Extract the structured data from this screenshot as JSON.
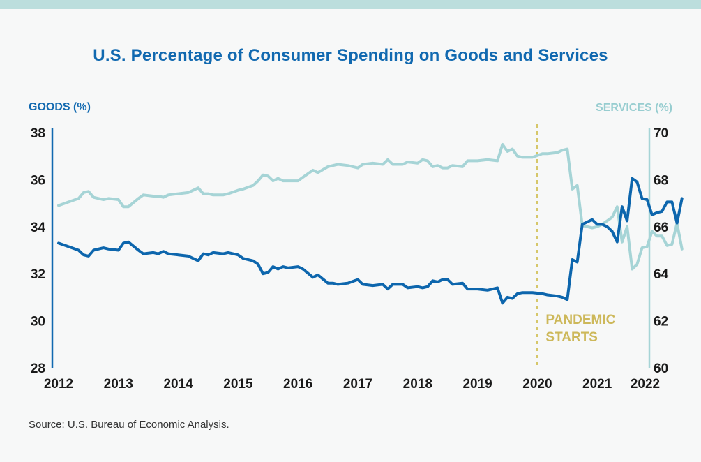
{
  "chart_data": {
    "type": "line",
    "title": "U.S. Percentage of Consumer Spending on Goods and Services",
    "ylabel_left": "GOODS (%)",
    "ylabel_right": "SERVICES (%)",
    "ylim_left": [
      28,
      38
    ],
    "ylim_right": [
      60,
      70
    ],
    "y_ticks_left": [
      "28",
      "30",
      "32",
      "34",
      "36",
      "38"
    ],
    "y_ticks_right": [
      "60",
      "62",
      "64",
      "66",
      "68",
      "70"
    ],
    "x_ticks": [
      "2012",
      "2013",
      "2014",
      "2015",
      "2016",
      "2017",
      "2018",
      "2019",
      "2020",
      "2021",
      "2022"
    ],
    "xlim": [
      "2012-01",
      "2022-01"
    ],
    "grid": false,
    "colors": {
      "goods": "#0d66ad",
      "services": "#a6d4d6",
      "annotation": "#d6c76a"
    },
    "annotation": {
      "x": "2020-01",
      "label_line1": "PANDEMIC",
      "label_line2": "STARTS"
    },
    "series": [
      {
        "name": "GOODS (%)",
        "axis": "left",
        "points": [
          [
            "2012-01",
            33.3
          ],
          [
            "2012-03",
            33.15
          ],
          [
            "2012-05",
            33.0
          ],
          [
            "2012-06",
            32.8
          ],
          [
            "2012-07",
            32.75
          ],
          [
            "2012-08",
            33.0
          ],
          [
            "2012-10",
            33.1
          ],
          [
            "2012-11",
            33.05
          ],
          [
            "2013-01",
            33.0
          ],
          [
            "2013-02",
            33.3
          ],
          [
            "2013-03",
            33.35
          ],
          [
            "2013-05",
            33.0
          ],
          [
            "2013-06",
            32.85
          ],
          [
            "2013-08",
            32.9
          ],
          [
            "2013-09",
            32.85
          ],
          [
            "2013-10",
            32.95
          ],
          [
            "2013-11",
            32.85
          ],
          [
            "2014-01",
            32.8
          ],
          [
            "2014-03",
            32.75
          ],
          [
            "2014-05",
            32.55
          ],
          [
            "2014-06",
            32.85
          ],
          [
            "2014-07",
            32.8
          ],
          [
            "2014-08",
            32.9
          ],
          [
            "2014-10",
            32.85
          ],
          [
            "2014-11",
            32.9
          ],
          [
            "2015-01",
            32.8
          ],
          [
            "2015-02",
            32.65
          ],
          [
            "2015-04",
            32.55
          ],
          [
            "2015-05",
            32.4
          ],
          [
            "2015-06",
            32.0
          ],
          [
            "2015-07",
            32.05
          ],
          [
            "2015-08",
            32.3
          ],
          [
            "2015-09",
            32.2
          ],
          [
            "2015-10",
            32.3
          ],
          [
            "2015-11",
            32.25
          ],
          [
            "2016-01",
            32.3
          ],
          [
            "2016-02",
            32.2
          ],
          [
            "2016-04",
            31.85
          ],
          [
            "2016-05",
            31.95
          ],
          [
            "2016-07",
            31.6
          ],
          [
            "2016-08",
            31.6
          ],
          [
            "2016-09",
            31.55
          ],
          [
            "2016-11",
            31.6
          ],
          [
            "2017-01",
            31.75
          ],
          [
            "2017-02",
            31.55
          ],
          [
            "2017-04",
            31.5
          ],
          [
            "2017-06",
            31.55
          ],
          [
            "2017-07",
            31.35
          ],
          [
            "2017-08",
            31.55
          ],
          [
            "2017-10",
            31.55
          ],
          [
            "2017-11",
            31.4
          ],
          [
            "2018-01",
            31.45
          ],
          [
            "2018-02",
            31.4
          ],
          [
            "2018-03",
            31.45
          ],
          [
            "2018-04",
            31.7
          ],
          [
            "2018-05",
            31.65
          ],
          [
            "2018-06",
            31.75
          ],
          [
            "2018-07",
            31.75
          ],
          [
            "2018-08",
            31.55
          ],
          [
            "2018-10",
            31.6
          ],
          [
            "2018-11",
            31.35
          ],
          [
            "2019-01",
            31.35
          ],
          [
            "2019-03",
            31.3
          ],
          [
            "2019-05",
            31.4
          ],
          [
            "2019-06",
            30.75
          ],
          [
            "2019-07",
            31.0
          ],
          [
            "2019-08",
            30.95
          ],
          [
            "2019-09",
            31.15
          ],
          [
            "2019-10",
            31.2
          ],
          [
            "2019-12",
            31.2
          ],
          [
            "2020-02",
            31.15
          ],
          [
            "2020-03",
            31.1
          ],
          [
            "2020-05",
            31.05
          ],
          [
            "2020-06",
            31.0
          ],
          [
            "2020-07",
            30.9
          ],
          [
            "2020-08",
            32.6
          ],
          [
            "2020-09",
            32.5
          ],
          [
            "2020-10",
            34.1
          ],
          [
            "2020-11",
            34.2
          ],
          [
            "2020-12",
            34.3
          ],
          [
            "2021-01",
            34.1
          ],
          [
            "2021-02",
            34.1
          ],
          [
            "2021-03",
            34.0
          ],
          [
            "2021-04",
            33.8
          ],
          [
            "2021-05",
            33.35
          ],
          [
            "2021-06",
            34.85
          ],
          [
            "2021-07",
            34.25
          ],
          [
            "2021-08",
            36.05
          ],
          [
            "2021-09",
            35.9
          ],
          [
            "2021-10",
            35.2
          ],
          [
            "2021-11",
            35.15
          ],
          [
            "2021-12",
            34.5
          ],
          [
            "2022-01",
            34.6
          ],
          [
            "2022-02",
            34.65
          ],
          [
            "2022-03",
            35.05
          ],
          [
            "2022-04",
            35.05
          ],
          [
            "2022-05",
            34.15
          ],
          [
            "2022-06",
            35.2
          ]
        ]
      },
      {
        "name": "SERVICES (%)",
        "axis": "right",
        "points": [
          [
            "2012-01",
            66.9
          ],
          [
            "2012-03",
            67.05
          ],
          [
            "2012-05",
            67.2
          ],
          [
            "2012-06",
            67.45
          ],
          [
            "2012-07",
            67.5
          ],
          [
            "2012-08",
            67.25
          ],
          [
            "2012-10",
            67.15
          ],
          [
            "2012-11",
            67.2
          ],
          [
            "2013-01",
            67.15
          ],
          [
            "2013-02",
            66.85
          ],
          [
            "2013-03",
            66.85
          ],
          [
            "2013-05",
            67.2
          ],
          [
            "2013-06",
            67.35
          ],
          [
            "2013-08",
            67.3
          ],
          [
            "2013-09",
            67.3
          ],
          [
            "2013-10",
            67.25
          ],
          [
            "2013-11",
            67.35
          ],
          [
            "2014-01",
            67.4
          ],
          [
            "2014-03",
            67.45
          ],
          [
            "2014-05",
            67.65
          ],
          [
            "2014-06",
            67.4
          ],
          [
            "2014-07",
            67.4
          ],
          [
            "2014-08",
            67.35
          ],
          [
            "2014-10",
            67.35
          ],
          [
            "2014-11",
            67.4
          ],
          [
            "2015-01",
            67.55
          ],
          [
            "2015-02",
            67.6
          ],
          [
            "2015-04",
            67.75
          ],
          [
            "2015-05",
            67.95
          ],
          [
            "2015-06",
            68.2
          ],
          [
            "2015-07",
            68.15
          ],
          [
            "2015-08",
            67.95
          ],
          [
            "2015-09",
            68.05
          ],
          [
            "2015-10",
            67.95
          ],
          [
            "2015-11",
            67.95
          ],
          [
            "2016-01",
            67.95
          ],
          [
            "2016-02",
            68.1
          ],
          [
            "2016-04",
            68.4
          ],
          [
            "2016-05",
            68.3
          ],
          [
            "2016-07",
            68.55
          ],
          [
            "2016-08",
            68.6
          ],
          [
            "2016-09",
            68.65
          ],
          [
            "2016-11",
            68.6
          ],
          [
            "2017-01",
            68.5
          ],
          [
            "2017-02",
            68.65
          ],
          [
            "2017-04",
            68.7
          ],
          [
            "2017-06",
            68.65
          ],
          [
            "2017-07",
            68.85
          ],
          [
            "2017-08",
            68.65
          ],
          [
            "2017-10",
            68.65
          ],
          [
            "2017-11",
            68.75
          ],
          [
            "2018-01",
            68.7
          ],
          [
            "2018-02",
            68.85
          ],
          [
            "2018-03",
            68.8
          ],
          [
            "2018-04",
            68.55
          ],
          [
            "2018-05",
            68.6
          ],
          [
            "2018-06",
            68.5
          ],
          [
            "2018-07",
            68.5
          ],
          [
            "2018-08",
            68.6
          ],
          [
            "2018-10",
            68.55
          ],
          [
            "2018-11",
            68.8
          ],
          [
            "2019-01",
            68.8
          ],
          [
            "2019-03",
            68.85
          ],
          [
            "2019-05",
            68.8
          ],
          [
            "2019-06",
            69.5
          ],
          [
            "2019-07",
            69.2
          ],
          [
            "2019-08",
            69.3
          ],
          [
            "2019-09",
            69.0
          ],
          [
            "2019-10",
            68.95
          ],
          [
            "2019-12",
            68.95
          ],
          [
            "2020-02",
            69.1
          ],
          [
            "2020-03",
            69.1
          ],
          [
            "2020-05",
            69.15
          ],
          [
            "2020-06",
            69.25
          ],
          [
            "2020-07",
            69.3
          ],
          [
            "2020-08",
            67.6
          ],
          [
            "2020-09",
            67.75
          ],
          [
            "2020-10",
            66.05
          ],
          [
            "2020-11",
            66.0
          ],
          [
            "2020-12",
            65.95
          ],
          [
            "2021-01",
            66.0
          ],
          [
            "2021-02",
            66.1
          ],
          [
            "2021-03",
            66.25
          ],
          [
            "2021-04",
            66.4
          ],
          [
            "2021-05",
            66.85
          ],
          [
            "2021-06",
            65.35
          ],
          [
            "2021-07",
            66.0
          ],
          [
            "2021-08",
            64.2
          ],
          [
            "2021-09",
            64.4
          ],
          [
            "2021-10",
            65.1
          ],
          [
            "2021-11",
            65.15
          ],
          [
            "2021-12",
            65.8
          ],
          [
            "2022-01",
            65.6
          ],
          [
            "2022-02",
            65.6
          ],
          [
            "2022-03",
            65.2
          ],
          [
            "2022-04",
            65.25
          ],
          [
            "2022-05",
            66.15
          ],
          [
            "2022-06",
            65.05
          ]
        ]
      }
    ]
  },
  "source": "Source: U.S. Bureau of Economic Analysis."
}
